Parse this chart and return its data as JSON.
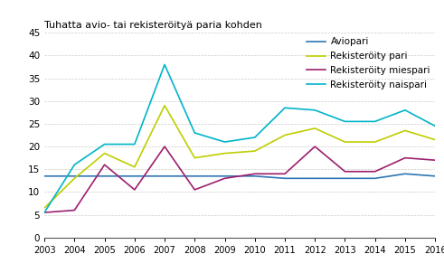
{
  "years": [
    2003,
    2004,
    2005,
    2006,
    2007,
    2008,
    2009,
    2010,
    2011,
    2012,
    2013,
    2014,
    2015,
    2016
  ],
  "aviopari": [
    13.5,
    13.5,
    13.5,
    13.5,
    13.5,
    13.5,
    13.5,
    13.5,
    13.0,
    13.0,
    13.0,
    13.0,
    14.0,
    13.5
  ],
  "rekisteroity_pari": [
    6.5,
    13.0,
    18.5,
    15.5,
    29.0,
    17.5,
    18.5,
    19.0,
    22.5,
    24.0,
    21.0,
    21.0,
    23.5,
    21.5
  ],
  "rekisteroity_miespari": [
    5.5,
    6.0,
    16.0,
    10.5,
    20.0,
    10.5,
    13.0,
    14.0,
    14.0,
    20.0,
    14.5,
    14.5,
    17.5,
    17.0
  ],
  "rekisteroity_naispari": [
    5.5,
    16.0,
    20.5,
    20.5,
    38.0,
    23.0,
    21.0,
    22.0,
    28.5,
    28.0,
    25.5,
    25.5,
    28.0,
    24.5
  ],
  "colors": {
    "aviopari": "#2e75b6",
    "rekisteroity_pari": "#bfce00",
    "rekisteroity_miespari": "#9e1f6e",
    "rekisteroity_naispari": "#00b4c8"
  },
  "legend_labels": [
    "Aviopari",
    "Rekisteröity pari",
    "Rekisteröity miespari",
    "Rekisteröity naispari"
  ],
  "title": "Tuhatta avio- tai rekisteröityä paria kohden",
  "ylim": [
    0,
    45
  ],
  "yticks": [
    0,
    5,
    10,
    15,
    20,
    25,
    30,
    35,
    40,
    45
  ],
  "background_color": "#ffffff"
}
